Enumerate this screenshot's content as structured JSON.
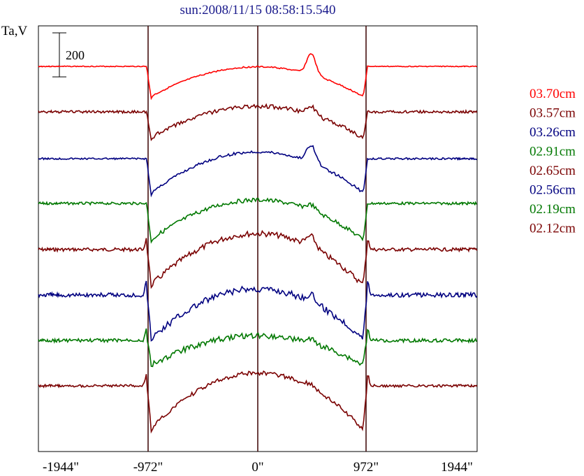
{
  "chart_data": {
    "type": "line",
    "title": "sun:2008/11/15 08:58:15.540",
    "ylabel": "Ta,V",
    "xlabel": "",
    "x_unit_suffix": "\"",
    "xlim": [
      -2300,
      2300
    ],
    "ylim": [
      0,
      1
    ],
    "grid": false,
    "legend_position": "right",
    "vertical_markers": [
      -972,
      0,
      972
    ],
    "x_ticks": [
      -1944,
      -972,
      0,
      972,
      1944
    ],
    "x_tick_labels": [
      "-1944\"",
      "-972\"",
      "0\"",
      "972\"",
      "1944\""
    ],
    "scale_bar": {
      "label": "200",
      "value": 200
    },
    "solar_radius": 972,
    "series": [
      {
        "name": "03.70cm",
        "color": "#ff0000",
        "baseline": 0.0,
        "limb_dip": 48,
        "disk_rise": 45,
        "edge_hump": 0,
        "spike": 30,
        "noise": 1
      },
      {
        "name": "03.57cm",
        "color": "#7a0000",
        "baseline": 0.0,
        "limb_dip": 42,
        "disk_rise": 48,
        "edge_hump": 0,
        "spike": 12,
        "noise": 3
      },
      {
        "name": "03.26cm",
        "color": "#000080",
        "baseline": 0.0,
        "limb_dip": 55,
        "disk_rise": 62,
        "edge_hump": 0,
        "spike": 25,
        "noise": 2
      },
      {
        "name": "02.91cm",
        "color": "#007800",
        "baseline": 0.0,
        "limb_dip": 58,
        "disk_rise": 60,
        "edge_hump": 0,
        "spike": 8,
        "noise": 3
      },
      {
        "name": "02.65cm",
        "color": "#7a0000",
        "baseline": 0.0,
        "limb_dip": 58,
        "disk_rise": 78,
        "edge_hump": 15,
        "spike": 15,
        "noise": 4
      },
      {
        "name": "02.56cm",
        "color": "#000080",
        "baseline": 0.0,
        "limb_dip": 70,
        "disk_rise": 75,
        "edge_hump": 18,
        "spike": 10,
        "noise": 5
      },
      {
        "name": "02.19cm",
        "color": "#007800",
        "baseline": 0.0,
        "limb_dip": 40,
        "disk_rise": 45,
        "edge_hump": 15,
        "spike": 5,
        "noise": 4
      },
      {
        "name": "02.12cm",
        "color": "#7a0000",
        "baseline": 0.0,
        "limb_dip": 70,
        "disk_rise": 85,
        "edge_hump": 15,
        "spike": 5,
        "noise": 3
      }
    ]
  }
}
